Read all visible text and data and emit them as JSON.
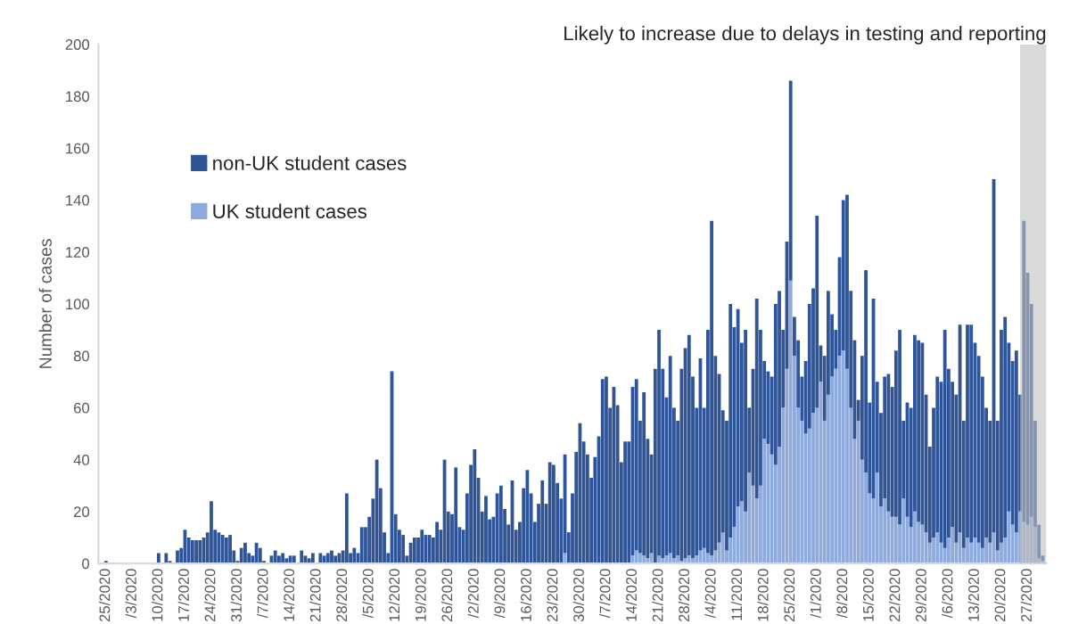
{
  "chart_data": {
    "type": "bar",
    "stacked": true,
    "ylabel": "Number of cases",
    "x": [
      "2020-02-25",
      "2020-02-26",
      "2020-02-27",
      "2020-02-28",
      "2020-02-29",
      "2020-03-01",
      "2020-03-02",
      "2020-03-03",
      "2020-03-04",
      "2020-03-05",
      "2020-03-06",
      "2020-03-07",
      "2020-03-08",
      "2020-03-09",
      "2020-03-10",
      "2020-03-11",
      "2020-03-12",
      "2020-03-13",
      "2020-03-14",
      "2020-03-15",
      "2020-03-16",
      "2020-03-17",
      "2020-03-18",
      "2020-03-19",
      "2020-03-20",
      "2020-03-21",
      "2020-03-22",
      "2020-03-23",
      "2020-03-24",
      "2020-03-25",
      "2020-03-26",
      "2020-03-27",
      "2020-03-28",
      "2020-03-29",
      "2020-03-30",
      "2020-03-31",
      "2020-04-01",
      "2020-04-02",
      "2020-04-03",
      "2020-04-04",
      "2020-04-05",
      "2020-04-06",
      "2020-04-07",
      "2020-04-08",
      "2020-04-09",
      "2020-04-10",
      "2020-04-11",
      "2020-04-12",
      "2020-04-13",
      "2020-04-14",
      "2020-04-15",
      "2020-04-16",
      "2020-04-17",
      "2020-04-18",
      "2020-04-19",
      "2020-04-20",
      "2020-04-21",
      "2020-04-22",
      "2020-04-23",
      "2020-04-24",
      "2020-04-25",
      "2020-04-26",
      "2020-04-27",
      "2020-04-28",
      "2020-04-29",
      "2020-04-30",
      "2020-05-01",
      "2020-05-02",
      "2020-05-03",
      "2020-05-04",
      "2020-05-05",
      "2020-05-06",
      "2020-05-07",
      "2020-05-08",
      "2020-05-09",
      "2020-05-10",
      "2020-05-11",
      "2020-05-12",
      "2020-05-13",
      "2020-05-14",
      "2020-05-15",
      "2020-05-16",
      "2020-05-17",
      "2020-05-18",
      "2020-05-19",
      "2020-05-20",
      "2020-05-21",
      "2020-05-22",
      "2020-05-23",
      "2020-05-24",
      "2020-05-25",
      "2020-05-26",
      "2020-05-27",
      "2020-05-28",
      "2020-05-29",
      "2020-05-30",
      "2020-05-31",
      "2020-06-01",
      "2020-06-02",
      "2020-06-03",
      "2020-06-04",
      "2020-06-05",
      "2020-06-06",
      "2020-06-07",
      "2020-06-08",
      "2020-06-09",
      "2020-06-10",
      "2020-06-11",
      "2020-06-12",
      "2020-06-13",
      "2020-06-14",
      "2020-06-15",
      "2020-06-16",
      "2020-06-17",
      "2020-06-18",
      "2020-06-19",
      "2020-06-20",
      "2020-06-21",
      "2020-06-22",
      "2020-06-23",
      "2020-06-24",
      "2020-06-25",
      "2020-06-26",
      "2020-06-27",
      "2020-06-28",
      "2020-06-29",
      "2020-06-30",
      "2020-07-01",
      "2020-07-02",
      "2020-07-03",
      "2020-07-04",
      "2020-07-05",
      "2020-07-06",
      "2020-07-07",
      "2020-07-08",
      "2020-07-09",
      "2020-07-10",
      "2020-07-11",
      "2020-07-12",
      "2020-07-13",
      "2020-07-14",
      "2020-07-15",
      "2020-07-16",
      "2020-07-17",
      "2020-07-18",
      "2020-07-19",
      "2020-07-20",
      "2020-07-21",
      "2020-07-22",
      "2020-07-23",
      "2020-07-24",
      "2020-07-25",
      "2020-07-26",
      "2020-07-27",
      "2020-07-28",
      "2020-07-29",
      "2020-07-30",
      "2020-07-31",
      "2020-08-01",
      "2020-08-02",
      "2020-08-03",
      "2020-08-04",
      "2020-08-05",
      "2020-08-06",
      "2020-08-07",
      "2020-08-08",
      "2020-08-09",
      "2020-08-10",
      "2020-08-11",
      "2020-08-12",
      "2020-08-13",
      "2020-08-14",
      "2020-08-15",
      "2020-08-16",
      "2020-08-17",
      "2020-08-18",
      "2020-08-19",
      "2020-08-20",
      "2020-08-21",
      "2020-08-22",
      "2020-08-23",
      "2020-08-24",
      "2020-08-25",
      "2020-08-26",
      "2020-08-27",
      "2020-08-28",
      "2020-08-29",
      "2020-08-30",
      "2020-08-31",
      "2020-09-01",
      "2020-09-02",
      "2020-09-03",
      "2020-09-04",
      "2020-09-05",
      "2020-09-06",
      "2020-09-07",
      "2020-09-08",
      "2020-09-09",
      "2020-09-10",
      "2020-09-11",
      "2020-09-12",
      "2020-09-13",
      "2020-09-14",
      "2020-09-15",
      "2020-09-16",
      "2020-09-17",
      "2020-09-18",
      "2020-09-19",
      "2020-09-20",
      "2020-09-21",
      "2020-09-22",
      "2020-09-23",
      "2020-09-24",
      "2020-09-25",
      "2020-09-26",
      "2020-09-27",
      "2020-09-28",
      "2020-09-29",
      "2020-09-30",
      "2020-10-01",
      "2020-10-02",
      "2020-10-03",
      "2020-10-04",
      "2020-10-05",
      "2020-10-06",
      "2020-10-07",
      "2020-10-08",
      "2020-10-09",
      "2020-10-10",
      "2020-10-11",
      "2020-10-12",
      "2020-10-13",
      "2020-10-14",
      "2020-10-15",
      "2020-10-16",
      "2020-10-17",
      "2020-10-18",
      "2020-10-19",
      "2020-10-20",
      "2020-10-21",
      "2020-10-22",
      "2020-10-23",
      "2020-10-24",
      "2020-10-25",
      "2020-10-26",
      "2020-10-27",
      "2020-10-28",
      "2020-10-29",
      "2020-10-30",
      "2020-10-31"
    ],
    "series": [
      {
        "name": "UK student cases",
        "color": "#8faadc",
        "values": [
          0,
          0,
          0,
          0,
          0,
          0,
          0,
          0,
          0,
          0,
          0,
          0,
          0,
          0,
          0,
          0,
          0,
          0,
          0,
          0,
          0,
          0,
          0,
          0,
          0,
          0,
          0,
          0,
          0,
          0,
          0,
          0,
          0,
          0,
          0,
          0,
          0,
          0,
          0,
          0,
          0,
          0,
          0,
          0,
          0,
          0,
          0,
          0,
          0,
          0,
          0,
          0,
          0,
          0,
          0,
          0,
          0,
          0,
          0,
          0,
          0,
          0,
          0,
          0,
          0,
          0,
          0,
          0,
          0,
          0,
          0,
          0,
          0,
          0,
          0,
          0,
          0,
          0,
          0,
          0,
          0,
          0,
          0,
          0,
          0,
          0,
          0,
          0,
          0,
          0,
          0,
          0,
          0,
          0,
          0,
          0,
          0,
          0,
          0,
          0,
          0,
          0,
          0,
          0,
          0,
          0,
          0,
          0,
          0,
          0,
          0,
          0,
          0,
          0,
          0,
          0,
          0,
          0,
          0,
          0,
          0,
          0,
          4,
          0,
          0,
          0,
          0,
          0,
          0,
          0,
          0,
          0,
          0,
          0,
          0,
          0,
          0,
          0,
          0,
          0,
          3,
          5,
          4,
          3,
          2,
          4,
          0,
          3,
          2,
          3,
          4,
          2,
          3,
          1,
          2,
          3,
          2,
          3,
          5,
          6,
          4,
          3,
          5,
          8,
          12,
          5,
          10,
          14,
          22,
          24,
          20,
          35,
          30,
          25,
          30,
          48,
          46,
          42,
          38,
          45,
          60,
          75,
          109,
          80,
          60,
          55,
          50,
          52,
          58,
          60,
          70,
          55,
          65,
          72,
          75,
          80,
          82,
          75,
          60,
          48,
          55,
          40,
          35,
          27,
          25,
          35,
          22,
          25,
          20,
          18,
          18,
          15,
          25,
          18,
          14,
          20,
          16,
          15,
          12,
          8,
          10,
          12,
          8,
          6,
          10,
          14,
          8,
          12,
          6,
          10,
          8,
          10,
          8,
          6,
          10,
          8,
          12,
          5,
          8,
          10,
          20,
          15,
          12,
          20,
          16,
          15,
          18,
          14,
          2,
          1
        ]
      },
      {
        "name": "non-UK student cases",
        "color": "#2f5597",
        "values": [
          1,
          0,
          0,
          0,
          0,
          0,
          0,
          0,
          0,
          0,
          0,
          0,
          0,
          0,
          4,
          0,
          4,
          1,
          0,
          5,
          6,
          13,
          10,
          9,
          9,
          9,
          10,
          12,
          24,
          13,
          12,
          11,
          10,
          11,
          5,
          1,
          6,
          8,
          4,
          3,
          8,
          6,
          1,
          0,
          3,
          5,
          3,
          4,
          2,
          3,
          3,
          0,
          5,
          3,
          2,
          4,
          0,
          4,
          3,
          4,
          5,
          3,
          4,
          5,
          27,
          4,
          6,
          4,
          14,
          14,
          18,
          25,
          40,
          29,
          12,
          4,
          74,
          19,
          13,
          11,
          3,
          8,
          10,
          10,
          13,
          11,
          11,
          10,
          16,
          13,
          40,
          20,
          19,
          37,
          14,
          13,
          27,
          38,
          44,
          33,
          20,
          26,
          17,
          18,
          27,
          30,
          21,
          15,
          32,
          13,
          16,
          29,
          36,
          27,
          16,
          23,
          32,
          23,
          39,
          38,
          31,
          25,
          38,
          12,
          27,
          43,
          54,
          47,
          42,
          33,
          41,
          49,
          71,
          72,
          60,
          68,
          61,
          39,
          47,
          47,
          65,
          66,
          51,
          63,
          46,
          38,
          75,
          87,
          73,
          61,
          76,
          58,
          52,
          74,
          81,
          85,
          70,
          57,
          74,
          54,
          86,
          129,
          75,
          65,
          47,
          50,
          90,
          77,
          76,
          61,
          70,
          25,
          45,
          77,
          60,
          30,
          28,
          30,
          62,
          60,
          30,
          49,
          77,
          15,
          26,
          17,
          28,
          48,
          48,
          74,
          14,
          25,
          40,
          24,
          15,
          38,
          58,
          67,
          45,
          38,
          8,
          40,
          78,
          35,
          77,
          35,
          36,
          47,
          53,
          50,
          64,
          75,
          30,
          44,
          46,
          68,
          70,
          70,
          53,
          37,
          50,
          60,
          62,
          84,
          65,
          56,
          57,
          80,
          49,
          82,
          84,
          75,
          72,
          66,
          50,
          47,
          136,
          50,
          82,
          85,
          65,
          63,
          70,
          45,
          116,
          97,
          82,
          41,
          13,
          2
        ]
      }
    ],
    "xlim": [
      "2020-02-23",
      "2020-11-01"
    ],
    "xticks": [
      {
        "value": "2020-02-25",
        "label": "25/2020"
      },
      {
        "value": "2020-03-03",
        "label": "/3/2020"
      },
      {
        "value": "2020-03-10",
        "label": "10/2020"
      },
      {
        "value": "2020-03-17",
        "label": "17/2020"
      },
      {
        "value": "2020-03-24",
        "label": "24/2020"
      },
      {
        "value": "2020-03-31",
        "label": "31/2020"
      },
      {
        "value": "2020-04-07",
        "label": "/7/2020"
      },
      {
        "value": "2020-04-14",
        "label": "14/2020"
      },
      {
        "value": "2020-04-21",
        "label": "21/2020"
      },
      {
        "value": "2020-04-28",
        "label": "28/2020"
      },
      {
        "value": "2020-05-05",
        "label": "/5/2020"
      },
      {
        "value": "2020-05-12",
        "label": "12/2020"
      },
      {
        "value": "2020-05-19",
        "label": "19/2020"
      },
      {
        "value": "2020-05-26",
        "label": "26/2020"
      },
      {
        "value": "2020-06-02",
        "label": "/2/2020"
      },
      {
        "value": "2020-06-09",
        "label": "/9/2020"
      },
      {
        "value": "2020-06-16",
        "label": "16/2020"
      },
      {
        "value": "2020-06-23",
        "label": "23/2020"
      },
      {
        "value": "2020-06-30",
        "label": "30/2020"
      },
      {
        "value": "2020-07-07",
        "label": "/7/2020"
      },
      {
        "value": "2020-07-14",
        "label": "14/2020"
      },
      {
        "value": "2020-07-21",
        "label": "21/2020"
      },
      {
        "value": "2020-07-28",
        "label": "28/2020"
      },
      {
        "value": "2020-08-04",
        "label": "/4/2020"
      },
      {
        "value": "2020-08-11",
        "label": "11/2020"
      },
      {
        "value": "2020-08-18",
        "label": "18/2020"
      },
      {
        "value": "2020-08-25",
        "label": "25/2020"
      },
      {
        "value": "2020-09-01",
        "label": "/1/2020"
      },
      {
        "value": "2020-09-08",
        "label": "/8/2020"
      },
      {
        "value": "2020-09-15",
        "label": "15/2020"
      },
      {
        "value": "2020-09-22",
        "label": "22/2020"
      },
      {
        "value": "2020-09-29",
        "label": "29/2020"
      },
      {
        "value": "2020-10-06",
        "label": "/6/2020"
      },
      {
        "value": "2020-10-13",
        "label": "13/2020"
      },
      {
        "value": "2020-10-20",
        "label": "20/2020"
      },
      {
        "value": "2020-10-27",
        "label": "27/2020"
      }
    ],
    "ylim": [
      0,
      200
    ],
    "yticks": [
      0,
      20,
      40,
      60,
      80,
      100,
      120,
      140,
      160,
      180,
      200
    ],
    "bands": [
      {
        "axis": "x",
        "from": "2020-10-25",
        "to": "2020-11-01",
        "label": "Likely to increase due to delays in testing and reporting",
        "color": "#bfbfbf"
      }
    ],
    "legend": "top left",
    "grid": false
  }
}
